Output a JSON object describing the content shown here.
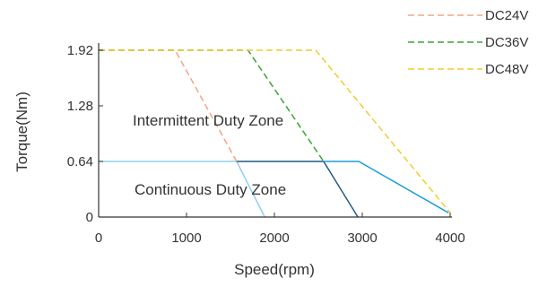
{
  "chart_data": {
    "type": "line",
    "xlabel": "Speed(rpm)",
    "ylabel": "Torque(Nm)",
    "xlim": [
      0,
      4000
    ],
    "ylim": [
      0,
      1.92
    ],
    "x_ticks": [
      0,
      1000,
      2000,
      3000,
      4000
    ],
    "x_tick_labels": [
      "0",
      "1000",
      "2000",
      "3000",
      "4000"
    ],
    "y_ticks": [
      0,
      0.64,
      1.28,
      1.92
    ],
    "y_tick_labels": [
      "0",
      "0.64",
      "1.28",
      "1.92"
    ],
    "grid": false,
    "legend_position": "top-right",
    "series": [
      {
        "name": "DC24V",
        "style": "dashed",
        "color": "#f4a582",
        "points": [
          [
            0,
            1.92
          ],
          [
            870,
            1.92
          ],
          [
            1570,
            0.64
          ]
        ]
      },
      {
        "name": "DC36V",
        "style": "dashed",
        "color": "#3aa335",
        "points": [
          [
            0,
            1.92
          ],
          [
            1700,
            1.92
          ],
          [
            2560,
            0.64
          ]
        ]
      },
      {
        "name": "DC48V",
        "style": "dashed",
        "color": "#f2cc2a",
        "points": [
          [
            0,
            1.92
          ],
          [
            2470,
            1.92
          ],
          [
            4000,
            0.05
          ]
        ]
      }
    ],
    "continuous_curves": [
      {
        "color": "#8fd1ec",
        "points": [
          [
            0,
            0.64
          ],
          [
            1570,
            0.64
          ],
          [
            1890,
            0
          ]
        ]
      },
      {
        "color": "#1f5a86",
        "points": [
          [
            1570,
            0.64
          ],
          [
            2560,
            0.64
          ],
          [
            2950,
            0
          ]
        ]
      },
      {
        "color": "#1aa0d6",
        "points": [
          [
            2560,
            0.64
          ],
          [
            2960,
            0.64
          ],
          [
            3980,
            0.05
          ]
        ]
      }
    ],
    "annotations": {
      "intermittent": "Intermittent Duty Zone",
      "continuous": "Continuous Duty Zone"
    }
  }
}
